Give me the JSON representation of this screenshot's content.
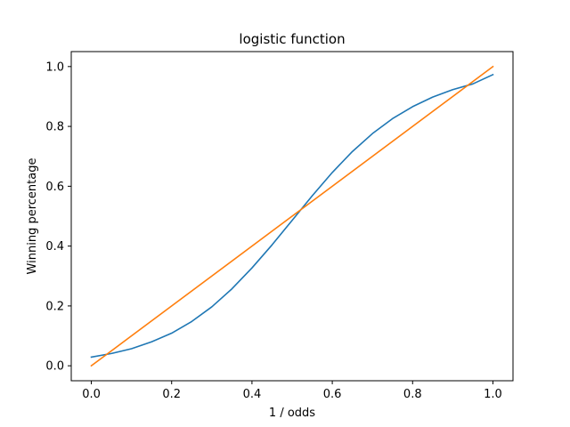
{
  "chart_data": {
    "type": "line",
    "title": "logistic function",
    "xlabel": "1 / odds",
    "ylabel": "Winning percentage",
    "xlim": [
      -0.05,
      1.05
    ],
    "ylim": [
      -0.05,
      1.05
    ],
    "xticks": [
      0.0,
      0.2,
      0.4,
      0.6,
      0.8,
      1.0
    ],
    "xtick_labels": [
      "0.0",
      "0.2",
      "0.4",
      "0.6",
      "0.8",
      "1.0"
    ],
    "yticks": [
      0.0,
      0.2,
      0.4,
      0.6,
      0.8,
      1.0
    ],
    "ytick_labels": [
      "0.0",
      "0.2",
      "0.4",
      "0.6",
      "0.8",
      "1.0"
    ],
    "grid": false,
    "series": [
      {
        "color": "#1f77b4",
        "x": [
          0.0,
          0.05,
          0.1,
          0.15,
          0.2,
          0.25,
          0.3,
          0.35,
          0.4,
          0.45,
          0.5,
          0.55,
          0.6,
          0.65,
          0.7,
          0.75,
          0.8,
          0.85,
          0.9,
          0.95,
          1.0
        ],
        "y": [
          0.029,
          0.041,
          0.057,
          0.08,
          0.109,
          0.148,
          0.197,
          0.257,
          0.327,
          0.404,
          0.486,
          0.568,
          0.646,
          0.716,
          0.776,
          0.826,
          0.866,
          0.898,
          0.923,
          0.942,
          0.973
        ]
      },
      {
        "color": "#ff7f0e",
        "x": [
          0.0,
          1.0
        ],
        "y": [
          0.0,
          1.0
        ]
      }
    ]
  }
}
